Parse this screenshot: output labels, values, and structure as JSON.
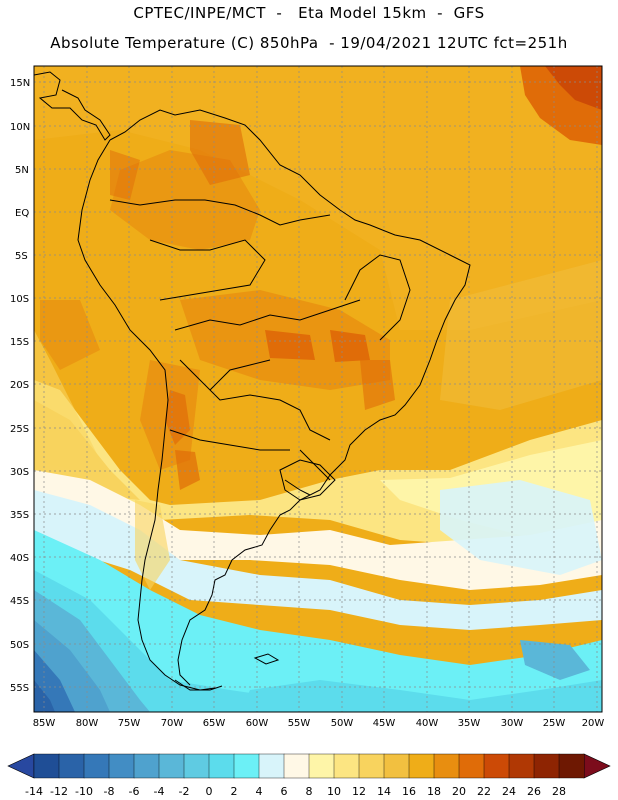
{
  "header": {
    "line1": "CPTEC/INPE/MCT  -   Eta Model 15km  -  GFS",
    "line2": "Absolute Temperature (C) 850hPa  - 19/04/2021 12UTC fct=251h"
  },
  "axes": {
    "lat_labels": [
      "15N",
      "10N",
      "5N",
      "EQ",
      "5S",
      "10S",
      "15S",
      "20S",
      "25S",
      "30S",
      "35S",
      "40S",
      "45S",
      "50S",
      "55S"
    ],
    "lon_labels": [
      "85W",
      "80W",
      "75W",
      "70W",
      "65W",
      "60W",
      "55W",
      "50W",
      "45W",
      "40W",
      "35W",
      "30W",
      "25W",
      "20W"
    ]
  },
  "colorbar": {
    "labels": [
      "-14",
      "-12",
      "-10",
      "-8",
      "-6",
      "-4",
      "-2",
      "0",
      "2",
      "4",
      "6",
      "8",
      "10",
      "12",
      "14",
      "16",
      "18",
      "20",
      "22",
      "24",
      "26",
      "28"
    ],
    "colors": [
      "#1f4e96",
      "#2a63a8",
      "#3578b8",
      "#428dc4",
      "#4fa2ce",
      "#5ab7d8",
      "#5fcbe2",
      "#5cdcec",
      "#6cf0f6",
      "#d8f4fa",
      "#fff8e6",
      "#fef5a8",
      "#fce582",
      "#f8d35e",
      "#f2c040",
      "#efad18",
      "#e88e10",
      "#e06c08",
      "#cc4a06",
      "#b03804",
      "#8e2402",
      "#6e1802"
    ],
    "min_color": "#2848a0",
    "max_color": "#7c0c1c"
  },
  "colors": {
    "base": "#efad18",
    "warm": "#e88e10",
    "hot": "#e06c08",
    "coast": "#000000"
  }
}
